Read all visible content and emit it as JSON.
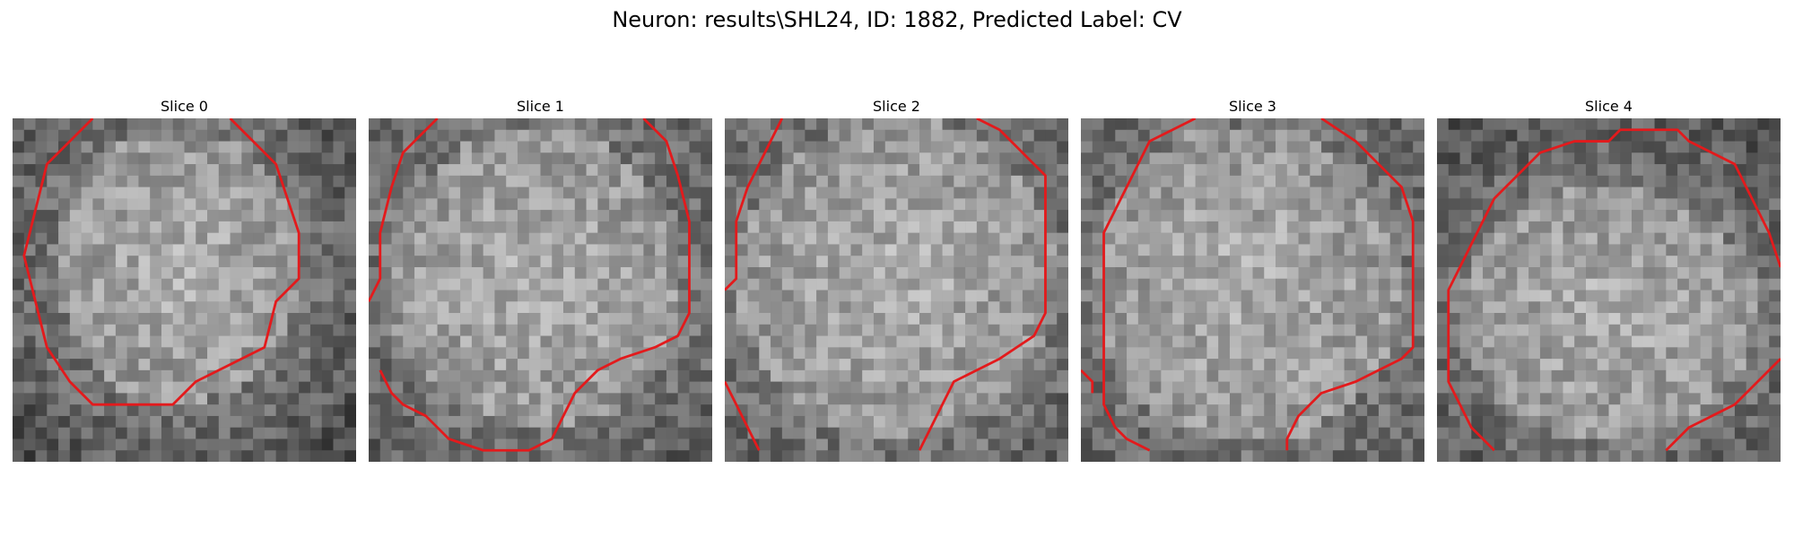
{
  "figure": {
    "title": "Neuron: results\\SHL24, ID: 1882, Predicted Label: CV"
  },
  "panels": [
    {
      "title": "Slice 0"
    },
    {
      "title": "Slice 1"
    },
    {
      "title": "Slice 2"
    },
    {
      "title": "Slice 3"
    },
    {
      "title": "Slice 4"
    }
  ],
  "style": {
    "contour_color": "#e31a1c",
    "background_color": "#ffffff",
    "image_colormap": "grayscale"
  }
}
